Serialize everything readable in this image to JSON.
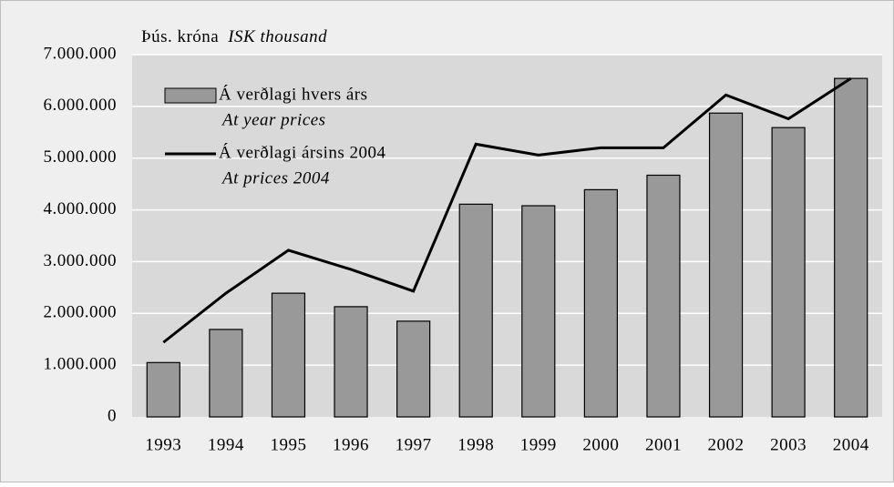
{
  "chart_data": {
    "type": "bar_line",
    "unit_label": "Þús. króna",
    "unit_label_en": "ISK thousand",
    "categories": [
      "1993",
      "1994",
      "1995",
      "1996",
      "1997",
      "1998",
      "1999",
      "2000",
      "2001",
      "2002",
      "2003",
      "2004"
    ],
    "series": [
      {
        "name": "Á verðlagi hvers árs",
        "name_en": "At year prices",
        "type": "bar",
        "color": "#999999",
        "values": [
          1050000,
          1690000,
          2390000,
          2130000,
          1850000,
          4110000,
          4080000,
          4390000,
          4670000,
          5870000,
          5590000,
          6540000
        ]
      },
      {
        "name": "Á verðlagi ársins 2004",
        "name_en": "At prices 2004",
        "type": "line",
        "color": "#000000",
        "values": [
          1440000,
          2390000,
          3220000,
          2850000,
          2430000,
          5270000,
          5060000,
          5200000,
          5200000,
          6220000,
          5760000,
          6540000
        ]
      }
    ],
    "ylim": [
      0,
      7000000
    ],
    "yticks": [
      0,
      {
        "value": 1000000,
        "label": "1.000.000"
      },
      {
        "value": 2000000,
        "label": "2.000.000"
      },
      {
        "value": 3000000,
        "label": "3.000.000"
      },
      {
        "value": 4000000,
        "label": "4.000.000"
      },
      {
        "value": 5000000,
        "label": "5.000.000"
      },
      {
        "value": 6000000,
        "label": "6.000.000"
      },
      {
        "value": 7000000,
        "label": "7.000.000"
      }
    ],
    "grid": true
  }
}
